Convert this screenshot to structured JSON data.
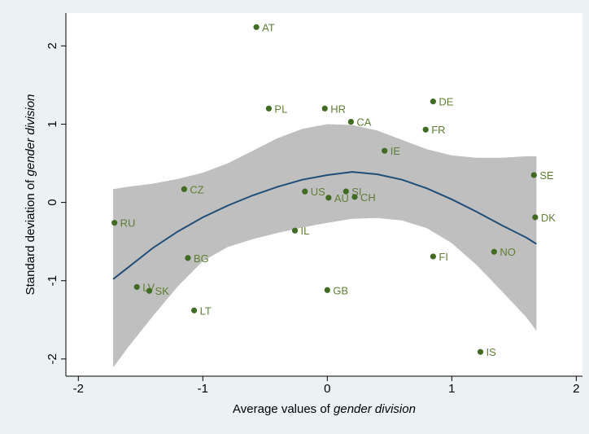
{
  "chart_data": {
    "type": "scatter",
    "xlabel_prefix": "Average values of ",
    "xlabel_italic": "gender division",
    "ylabel_prefix": "Standard deviation of ",
    "ylabel_italic": "gender division",
    "xlim": [
      -2.1,
      2.05
    ],
    "ylim": [
      -2.22,
      2.42
    ],
    "xticks": [
      -2,
      -1,
      0,
      1,
      2
    ],
    "yticks": [
      -2,
      -1,
      0,
      1,
      2
    ],
    "grid": false,
    "legend": "none",
    "colors": {
      "background": "#eaf2f3",
      "plot_area": "#ffffff",
      "point": "#3f6b23",
      "label": "#5e7e35",
      "fit_line": "#1f4e79",
      "ci_band": "#bfbfbf"
    },
    "points": [
      {
        "label": "AT",
        "x": -0.57,
        "y": 2.24
      },
      {
        "label": "PL",
        "x": -0.47,
        "y": 1.2
      },
      {
        "label": "HR",
        "x": -0.02,
        "y": 1.2
      },
      {
        "label": "DE",
        "x": 0.85,
        "y": 1.29
      },
      {
        "label": "CA",
        "x": 0.19,
        "y": 1.03
      },
      {
        "label": "FR",
        "x": 0.79,
        "y": 0.93
      },
      {
        "label": "IE",
        "x": 0.46,
        "y": 0.66
      },
      {
        "label": "SE",
        "x": 1.66,
        "y": 0.35
      },
      {
        "label": "CZ",
        "x": -1.15,
        "y": 0.17
      },
      {
        "label": "US",
        "x": -0.18,
        "y": 0.14
      },
      {
        "label": "SI",
        "x": 0.15,
        "y": 0.14
      },
      {
        "label": "AU",
        "x": 0.01,
        "y": 0.06
      },
      {
        "label": "CH",
        "x": 0.22,
        "y": 0.07
      },
      {
        "label": "RU",
        "x": -1.71,
        "y": -0.26
      },
      {
        "label": "DK",
        "x": 1.67,
        "y": -0.19
      },
      {
        "label": "IL",
        "x": -0.26,
        "y": -0.36
      },
      {
        "label": "BG",
        "x": -1.12,
        "y": -0.71
      },
      {
        "label": "NO",
        "x": 1.34,
        "y": -0.63
      },
      {
        "label": "FI",
        "x": 0.85,
        "y": -0.69
      },
      {
        "label": "LV",
        "x": -1.53,
        "y": -1.08
      },
      {
        "label": "SK",
        "x": -1.43,
        "y": -1.13
      },
      {
        "label": "GB",
        "x": 0.0,
        "y": -1.12
      },
      {
        "label": "LT",
        "x": -1.07,
        "y": -1.38
      },
      {
        "label": "IS",
        "x": 1.23,
        "y": -1.91
      }
    ],
    "fit": {
      "x": [
        -1.72,
        -1.6,
        -1.4,
        -1.2,
        -1.0,
        -0.8,
        -0.6,
        -0.4,
        -0.2,
        0.0,
        0.2,
        0.4,
        0.6,
        0.8,
        1.0,
        1.2,
        1.4,
        1.6,
        1.68
      ],
      "y": [
        -0.98,
        -0.83,
        -0.58,
        -0.37,
        -0.19,
        -0.04,
        0.09,
        0.2,
        0.29,
        0.35,
        0.39,
        0.36,
        0.29,
        0.18,
        0.04,
        -0.12,
        -0.29,
        -0.45,
        -0.53
      ],
      "ci_upper": [
        0.17,
        0.2,
        0.24,
        0.3,
        0.38,
        0.5,
        0.66,
        0.82,
        0.94,
        1.0,
        0.99,
        0.92,
        0.8,
        0.68,
        0.6,
        0.57,
        0.57,
        0.59,
        0.59
      ],
      "ci_lower": [
        -2.11,
        -1.85,
        -1.45,
        -1.07,
        -0.75,
        -0.57,
        -0.47,
        -0.39,
        -0.32,
        -0.26,
        -0.21,
        -0.2,
        -0.23,
        -0.33,
        -0.52,
        -0.8,
        -1.13,
        -1.47,
        -1.64
      ]
    }
  }
}
